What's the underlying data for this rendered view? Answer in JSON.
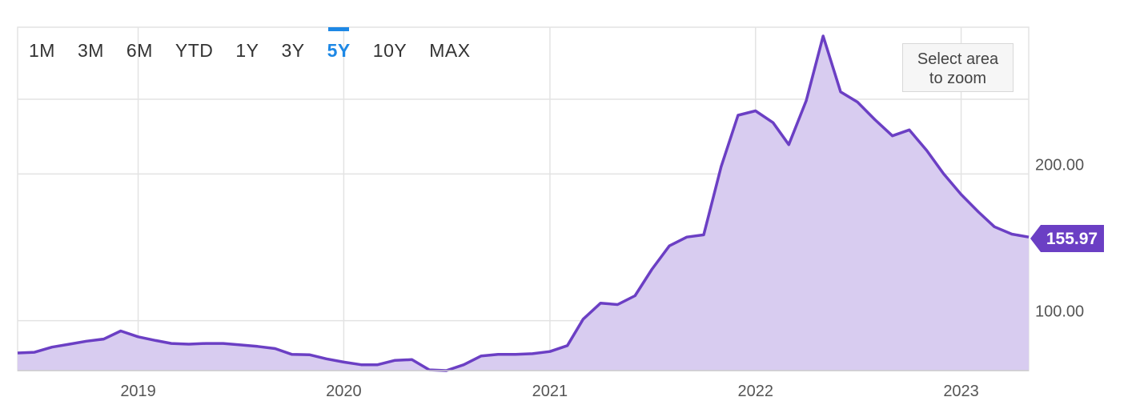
{
  "range_buttons": [
    {
      "label": "1M"
    },
    {
      "label": "3M"
    },
    {
      "label": "6M"
    },
    {
      "label": "YTD"
    },
    {
      "label": "1Y"
    },
    {
      "label": "3Y"
    },
    {
      "label": "5Y",
      "active": true
    },
    {
      "label": "10Y"
    },
    {
      "label": "MAX"
    }
  ],
  "zoom_hint": {
    "line1": "Select area",
    "line2": "to zoom"
  },
  "colors": {
    "line": "#6b3fc4",
    "fill": "#d8ccf0",
    "grid": "#e3e3e3",
    "active": "#1e88e5",
    "badge": "#6b3fc4"
  },
  "chart_data": {
    "type": "area",
    "title": "",
    "xlabel": "",
    "ylabel": "",
    "x_ticks": [
      "2019",
      "2020",
      "2021",
      "2022",
      "2023"
    ],
    "y_ticks": [
      100,
      200
    ],
    "y_tick_labels": [
      "100.00",
      "200.00"
    ],
    "xlim": [
      "2018-06-01",
      "2023-05-01"
    ],
    "ylim": [
      66,
      300
    ],
    "grid": true,
    "last_value_label": "155.97",
    "series": [
      {
        "x": [
          "2018-06-01",
          "2018-07-01",
          "2018-08-01",
          "2018-09-01",
          "2018-10-01",
          "2018-11-01",
          "2018-12-01",
          "2019-01-01",
          "2019-02-01",
          "2019-03-01",
          "2019-04-01",
          "2019-05-01",
          "2019-06-01",
          "2019-07-01",
          "2019-08-01",
          "2019-09-01",
          "2019-10-01",
          "2019-11-01",
          "2019-12-01",
          "2020-01-01",
          "2020-02-01",
          "2020-03-01",
          "2020-04-01",
          "2020-05-01",
          "2020-06-01",
          "2020-07-01",
          "2020-08-01",
          "2020-09-01",
          "2020-10-01",
          "2020-11-01",
          "2020-12-01",
          "2021-01-01",
          "2021-02-01",
          "2021-03-01",
          "2021-04-01",
          "2021-05-01",
          "2021-06-01",
          "2021-07-01",
          "2021-08-01",
          "2021-09-01",
          "2021-10-01",
          "2021-11-01",
          "2021-12-01",
          "2022-01-01",
          "2022-02-01",
          "2022-03-01",
          "2022-04-01",
          "2022-05-01",
          "2022-06-01",
          "2022-07-01",
          "2022-08-01",
          "2022-09-01",
          "2022-10-01",
          "2022-11-01",
          "2022-12-01",
          "2023-01-01",
          "2023-02-01",
          "2023-03-01",
          "2023-04-01",
          "2023-05-01"
        ],
        "values": [
          78,
          78.5,
          82,
          84,
          86,
          87.5,
          93,
          89,
          86.5,
          84.5,
          84,
          84.5,
          84.5,
          83.5,
          82.5,
          81,
          77,
          76.8,
          74,
          71.8,
          70,
          70,
          73,
          73.5,
          66.5,
          66,
          70,
          76,
          77,
          77,
          77.5,
          79,
          83,
          101,
          112,
          111,
          117,
          135,
          151,
          157,
          158.5,
          205,
          240,
          243,
          235,
          220,
          250,
          294,
          256,
          249,
          237,
          226,
          230,
          216,
          200,
          186,
          174,
          164,
          159,
          157
        ],
        "last": 155.97
      }
    ]
  }
}
